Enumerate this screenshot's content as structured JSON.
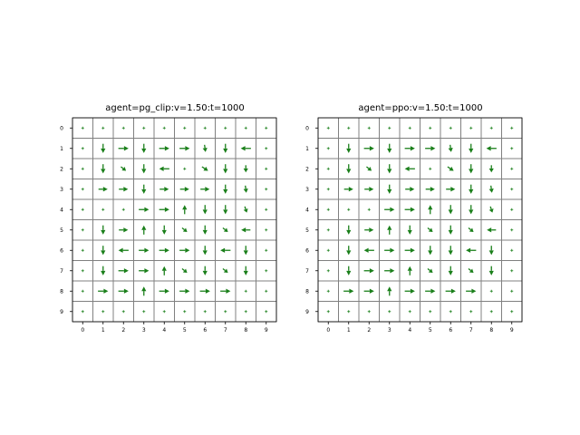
{
  "chart_data": [
    {
      "type": "quiver",
      "title": "agent=pg_clip:v=1.50:t=1000",
      "xlabel": "",
      "ylabel": "",
      "x_ticks": [
        "0",
        "1",
        "2",
        "3",
        "4",
        "5",
        "6",
        "7",
        "8",
        "9"
      ],
      "y_ticks": [
        "0",
        "1",
        "2",
        "3",
        "4",
        "5",
        "6",
        "7",
        "8",
        "9"
      ],
      "xlim": [
        -0.5,
        9.5
      ],
      "ylim": [
        9.5,
        -0.5
      ],
      "grid": true,
      "arrow_color": "#1a7f1a",
      "grid_color": "#808080",
      "vectors": [
        {
          "x": 1,
          "y": 1,
          "dx": 0,
          "dy": 0.45
        },
        {
          "x": 2,
          "y": 1,
          "dx": 0.5,
          "dy": 0
        },
        {
          "x": 3,
          "y": 1,
          "dx": 0,
          "dy": 0.45
        },
        {
          "x": 4,
          "y": 1,
          "dx": 0.5,
          "dy": 0
        },
        {
          "x": 5,
          "y": 1,
          "dx": 0.5,
          "dy": 0
        },
        {
          "x": 6,
          "y": 1,
          "dx": 0.05,
          "dy": 0.35
        },
        {
          "x": 7,
          "y": 1,
          "dx": 0,
          "dy": 0.45
        },
        {
          "x": 8,
          "y": 1,
          "dx": -0.5,
          "dy": 0
        },
        {
          "x": 1,
          "y": 2,
          "dx": 0,
          "dy": 0.45
        },
        {
          "x": 2,
          "y": 2,
          "dx": 0.25,
          "dy": 0.2
        },
        {
          "x": 3,
          "y": 2,
          "dx": 0,
          "dy": 0.45
        },
        {
          "x": 4,
          "y": 2,
          "dx": -0.5,
          "dy": 0
        },
        {
          "x": 6,
          "y": 2,
          "dx": 0.3,
          "dy": 0.2
        },
        {
          "x": 7,
          "y": 2,
          "dx": 0,
          "dy": 0.45
        },
        {
          "x": 8,
          "y": 2,
          "dx": 0,
          "dy": 0.35
        },
        {
          "x": 1,
          "y": 3,
          "dx": 0.45,
          "dy": 0
        },
        {
          "x": 2,
          "y": 3,
          "dx": 0.45,
          "dy": 0
        },
        {
          "x": 3,
          "y": 3,
          "dx": 0,
          "dy": 0.45
        },
        {
          "x": 4,
          "y": 3,
          "dx": 0.45,
          "dy": 0
        },
        {
          "x": 5,
          "y": 3,
          "dx": 0.45,
          "dy": 0
        },
        {
          "x": 6,
          "y": 3,
          "dx": 0.45,
          "dy": 0
        },
        {
          "x": 7,
          "y": 3,
          "dx": 0,
          "dy": 0.45
        },
        {
          "x": 8,
          "y": 3,
          "dx": 0.05,
          "dy": 0.35
        },
        {
          "x": 3,
          "y": 4,
          "dx": 0.5,
          "dy": 0
        },
        {
          "x": 4,
          "y": 4,
          "dx": 0.5,
          "dy": 0
        },
        {
          "x": 5,
          "y": 4,
          "dx": 0,
          "dy": -0.45
        },
        {
          "x": 6,
          "y": 4,
          "dx": 0,
          "dy": 0.45
        },
        {
          "x": 7,
          "y": 4,
          "dx": 0,
          "dy": 0.45
        },
        {
          "x": 8,
          "y": 4,
          "dx": 0.1,
          "dy": 0.3
        },
        {
          "x": 1,
          "y": 5,
          "dx": 0,
          "dy": 0.45
        },
        {
          "x": 2,
          "y": 5,
          "dx": 0.45,
          "dy": 0
        },
        {
          "x": 3,
          "y": 5,
          "dx": 0,
          "dy": -0.45
        },
        {
          "x": 4,
          "y": 5,
          "dx": 0,
          "dy": 0.45
        },
        {
          "x": 5,
          "y": 5,
          "dx": 0.25,
          "dy": 0.2
        },
        {
          "x": 6,
          "y": 5,
          "dx": 0,
          "dy": 0.45
        },
        {
          "x": 7,
          "y": 5,
          "dx": 0.25,
          "dy": 0.2
        },
        {
          "x": 8,
          "y": 5,
          "dx": -0.45,
          "dy": 0
        },
        {
          "x": 1,
          "y": 6,
          "dx": 0,
          "dy": 0.45
        },
        {
          "x": 2,
          "y": 6,
          "dx": -0.5,
          "dy": 0
        },
        {
          "x": 3,
          "y": 6,
          "dx": 0.5,
          "dy": 0
        },
        {
          "x": 4,
          "y": 6,
          "dx": 0.5,
          "dy": 0
        },
        {
          "x": 5,
          "y": 6,
          "dx": 0.5,
          "dy": 0
        },
        {
          "x": 6,
          "y": 6,
          "dx": 0,
          "dy": 0.45
        },
        {
          "x": 7,
          "y": 6,
          "dx": -0.5,
          "dy": 0
        },
        {
          "x": 8,
          "y": 6,
          "dx": 0,
          "dy": 0.45
        },
        {
          "x": 1,
          "y": 7,
          "dx": 0,
          "dy": 0.45
        },
        {
          "x": 2,
          "y": 7,
          "dx": 0.5,
          "dy": 0
        },
        {
          "x": 3,
          "y": 7,
          "dx": 0.5,
          "dy": 0
        },
        {
          "x": 4,
          "y": 7,
          "dx": 0,
          "dy": -0.45
        },
        {
          "x": 5,
          "y": 7,
          "dx": 0.25,
          "dy": 0.2
        },
        {
          "x": 6,
          "y": 7,
          "dx": 0,
          "dy": 0.45
        },
        {
          "x": 7,
          "y": 7,
          "dx": 0.25,
          "dy": 0.2
        },
        {
          "x": 8,
          "y": 7,
          "dx": 0,
          "dy": 0.45
        },
        {
          "x": 1,
          "y": 8,
          "dx": 0.5,
          "dy": 0
        },
        {
          "x": 2,
          "y": 8,
          "dx": 0.5,
          "dy": 0
        },
        {
          "x": 3,
          "y": 8,
          "dx": 0,
          "dy": -0.45
        },
        {
          "x": 4,
          "y": 8,
          "dx": 0.5,
          "dy": 0
        },
        {
          "x": 5,
          "y": 8,
          "dx": 0.5,
          "dy": 0
        },
        {
          "x": 6,
          "y": 8,
          "dx": 0.5,
          "dy": 0
        },
        {
          "x": 7,
          "y": 8,
          "dx": 0.5,
          "dy": 0
        }
      ]
    },
    {
      "type": "quiver",
      "title": "agent=ppo:v=1.50:t=1000",
      "xlabel": "",
      "ylabel": "",
      "x_ticks": [
        "0",
        "1",
        "2",
        "3",
        "4",
        "5",
        "6",
        "7",
        "8",
        "9"
      ],
      "y_ticks": [
        "0",
        "1",
        "2",
        "3",
        "4",
        "5",
        "6",
        "7",
        "8",
        "9"
      ],
      "xlim": [
        -0.5,
        9.5
      ],
      "ylim": [
        9.5,
        -0.5
      ],
      "grid": true,
      "arrow_color": "#1a7f1a",
      "grid_color": "#808080",
      "vectors": [
        {
          "x": 1,
          "y": 1,
          "dx": 0,
          "dy": 0.45
        },
        {
          "x": 2,
          "y": 1,
          "dx": 0.5,
          "dy": 0
        },
        {
          "x": 3,
          "y": 1,
          "dx": 0,
          "dy": 0.45
        },
        {
          "x": 4,
          "y": 1,
          "dx": 0.5,
          "dy": 0
        },
        {
          "x": 5,
          "y": 1,
          "dx": 0.5,
          "dy": 0
        },
        {
          "x": 6,
          "y": 1,
          "dx": 0.05,
          "dy": 0.35
        },
        {
          "x": 7,
          "y": 1,
          "dx": 0,
          "dy": 0.45
        },
        {
          "x": 8,
          "y": 1,
          "dx": -0.5,
          "dy": 0
        },
        {
          "x": 1,
          "y": 2,
          "dx": 0,
          "dy": 0.45
        },
        {
          "x": 2,
          "y": 2,
          "dx": 0.25,
          "dy": 0.2
        },
        {
          "x": 3,
          "y": 2,
          "dx": 0,
          "dy": 0.45
        },
        {
          "x": 4,
          "y": 2,
          "dx": -0.5,
          "dy": 0
        },
        {
          "x": 6,
          "y": 2,
          "dx": 0.3,
          "dy": 0.2
        },
        {
          "x": 7,
          "y": 2,
          "dx": 0,
          "dy": 0.45
        },
        {
          "x": 8,
          "y": 2,
          "dx": 0,
          "dy": 0.35
        },
        {
          "x": 1,
          "y": 3,
          "dx": 0.45,
          "dy": 0
        },
        {
          "x": 2,
          "y": 3,
          "dx": 0.45,
          "dy": 0
        },
        {
          "x": 3,
          "y": 3,
          "dx": 0,
          "dy": 0.45
        },
        {
          "x": 4,
          "y": 3,
          "dx": 0.45,
          "dy": 0
        },
        {
          "x": 5,
          "y": 3,
          "dx": 0.45,
          "dy": 0
        },
        {
          "x": 6,
          "y": 3,
          "dx": 0.45,
          "dy": 0
        },
        {
          "x": 7,
          "y": 3,
          "dx": 0,
          "dy": 0.45
        },
        {
          "x": 8,
          "y": 3,
          "dx": 0.05,
          "dy": 0.35
        },
        {
          "x": 3,
          "y": 4,
          "dx": 0.5,
          "dy": 0
        },
        {
          "x": 4,
          "y": 4,
          "dx": 0.5,
          "dy": 0
        },
        {
          "x": 5,
          "y": 4,
          "dx": 0,
          "dy": -0.45
        },
        {
          "x": 6,
          "y": 4,
          "dx": 0,
          "dy": 0.45
        },
        {
          "x": 7,
          "y": 4,
          "dx": 0,
          "dy": 0.45
        },
        {
          "x": 8,
          "y": 4,
          "dx": 0.1,
          "dy": 0.3
        },
        {
          "x": 1,
          "y": 5,
          "dx": 0,
          "dy": 0.45
        },
        {
          "x": 2,
          "y": 5,
          "dx": 0.45,
          "dy": 0
        },
        {
          "x": 3,
          "y": 5,
          "dx": 0,
          "dy": -0.45
        },
        {
          "x": 4,
          "y": 5,
          "dx": 0,
          "dy": 0.45
        },
        {
          "x": 5,
          "y": 5,
          "dx": 0.25,
          "dy": 0.2
        },
        {
          "x": 6,
          "y": 5,
          "dx": 0,
          "dy": 0.45
        },
        {
          "x": 7,
          "y": 5,
          "dx": 0.25,
          "dy": 0.2
        },
        {
          "x": 8,
          "y": 5,
          "dx": -0.45,
          "dy": 0
        },
        {
          "x": 1,
          "y": 6,
          "dx": 0,
          "dy": 0.45
        },
        {
          "x": 2,
          "y": 6,
          "dx": -0.5,
          "dy": 0
        },
        {
          "x": 3,
          "y": 6,
          "dx": 0.5,
          "dy": 0
        },
        {
          "x": 4,
          "y": 6,
          "dx": 0.5,
          "dy": 0
        },
        {
          "x": 5,
          "y": 6,
          "dx": 0,
          "dy": 0.45
        },
        {
          "x": 6,
          "y": 6,
          "dx": 0,
          "dy": 0.45
        },
        {
          "x": 7,
          "y": 6,
          "dx": -0.5,
          "dy": 0
        },
        {
          "x": 8,
          "y": 6,
          "dx": 0,
          "dy": 0.45
        },
        {
          "x": 1,
          "y": 7,
          "dx": 0,
          "dy": 0.45
        },
        {
          "x": 2,
          "y": 7,
          "dx": 0.5,
          "dy": 0
        },
        {
          "x": 3,
          "y": 7,
          "dx": 0.5,
          "dy": 0
        },
        {
          "x": 4,
          "y": 7,
          "dx": 0,
          "dy": -0.45
        },
        {
          "x": 5,
          "y": 7,
          "dx": 0.25,
          "dy": 0.2
        },
        {
          "x": 6,
          "y": 7,
          "dx": 0,
          "dy": 0.45
        },
        {
          "x": 7,
          "y": 7,
          "dx": 0.25,
          "dy": 0.2
        },
        {
          "x": 8,
          "y": 7,
          "dx": 0,
          "dy": 0.45
        },
        {
          "x": 1,
          "y": 8,
          "dx": 0.5,
          "dy": 0
        },
        {
          "x": 2,
          "y": 8,
          "dx": 0.5,
          "dy": 0
        },
        {
          "x": 3,
          "y": 8,
          "dx": 0,
          "dy": -0.45
        },
        {
          "x": 4,
          "y": 8,
          "dx": 0.5,
          "dy": 0
        },
        {
          "x": 5,
          "y": 8,
          "dx": 0.5,
          "dy": 0
        },
        {
          "x": 6,
          "y": 8,
          "dx": 0.5,
          "dy": 0
        },
        {
          "x": 7,
          "y": 8,
          "dx": 0.5,
          "dy": 0
        }
      ]
    }
  ]
}
